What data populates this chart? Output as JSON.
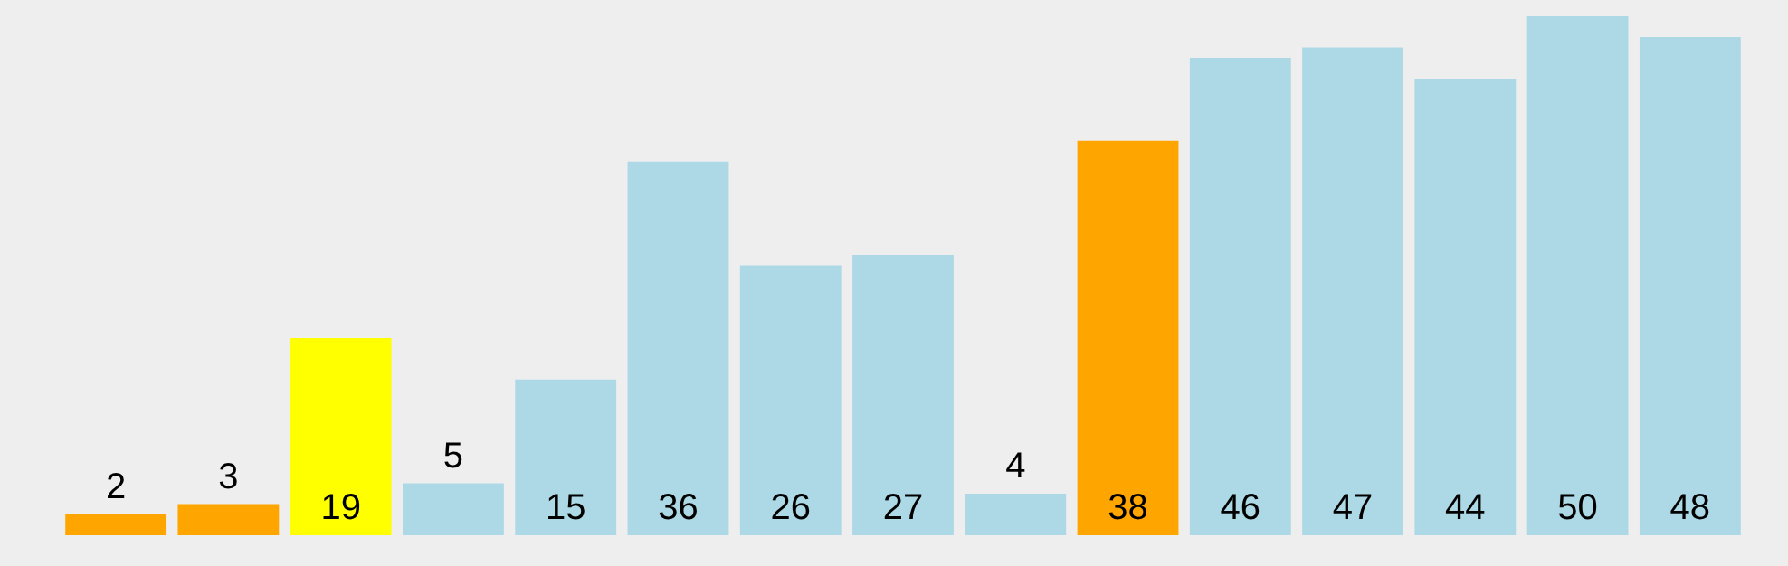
{
  "chart_data": {
    "type": "bar",
    "categories": [
      null,
      null,
      null,
      null,
      null,
      null,
      null,
      null,
      null,
      null,
      null,
      null,
      null,
      null,
      null
    ],
    "values": [
      2,
      3,
      19,
      5,
      15,
      36,
      26,
      27,
      4,
      38,
      46,
      47,
      44,
      50,
      48
    ],
    "colors": [
      "#ffa500",
      "#ffa500",
      "#ffff00",
      "#add8e6",
      "#add8e6",
      "#add8e6",
      "#add8e6",
      "#add8e6",
      "#add8e6",
      "#ffa500",
      "#add8e6",
      "#add8e6",
      "#add8e6",
      "#add8e6",
      "#add8e6"
    ],
    "data_labels": true
  }
}
